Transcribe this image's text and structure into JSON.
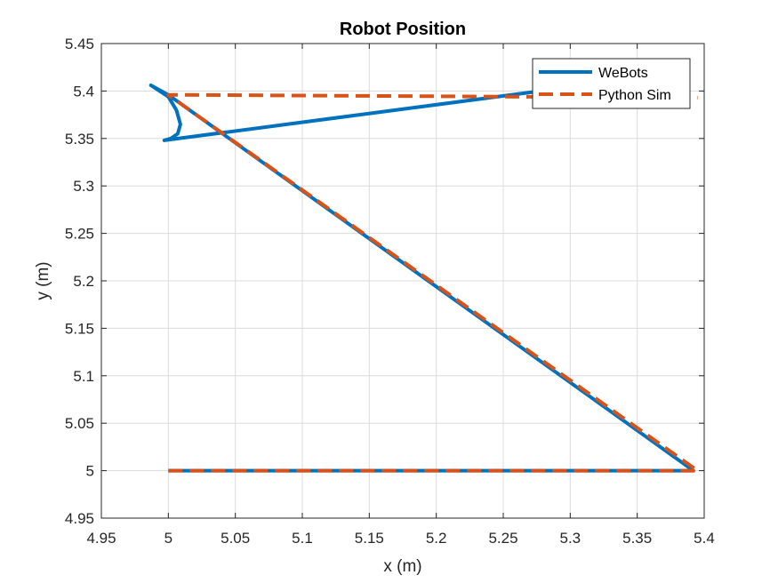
{
  "chart_data": {
    "type": "line",
    "title": "Robot Position",
    "xlabel": "x (m)",
    "ylabel": "y (m)",
    "xlim": [
      4.95,
      5.4
    ],
    "ylim": [
      4.95,
      5.45
    ],
    "xticks": [
      "4.95",
      "5",
      "5.05",
      "5.1",
      "5.15",
      "5.2",
      "5.25",
      "5.3",
      "5.35",
      "5.4"
    ],
    "yticks": [
      "4.95",
      "5",
      "5.05",
      "5.1",
      "5.15",
      "5.2",
      "5.25",
      "5.3",
      "5.35",
      "5.4",
      "5.45"
    ],
    "grid": true,
    "legend_position": "top-right",
    "series": [
      {
        "name": "WeBots",
        "color": "#0072BD",
        "style": "solid",
        "points": [
          [
            5.0,
            5.0
          ],
          [
            5.392,
            5.0
          ],
          [
            5.0,
            5.396
          ],
          [
            4.987,
            5.406
          ],
          [
            5.0,
            5.394
          ],
          [
            5.006,
            5.38
          ],
          [
            5.009,
            5.365
          ],
          [
            5.007,
            5.355
          ],
          [
            5.002,
            5.35
          ],
          [
            4.997,
            5.348
          ],
          [
            5.3,
            5.404
          ]
        ]
      },
      {
        "name": "Python Sim",
        "color": "#D95319",
        "style": "dashed",
        "points": [
          [
            5.0,
            5.0
          ],
          [
            5.395,
            5.0
          ],
          [
            5.0,
            5.396
          ],
          [
            5.395,
            5.393
          ]
        ]
      }
    ]
  }
}
